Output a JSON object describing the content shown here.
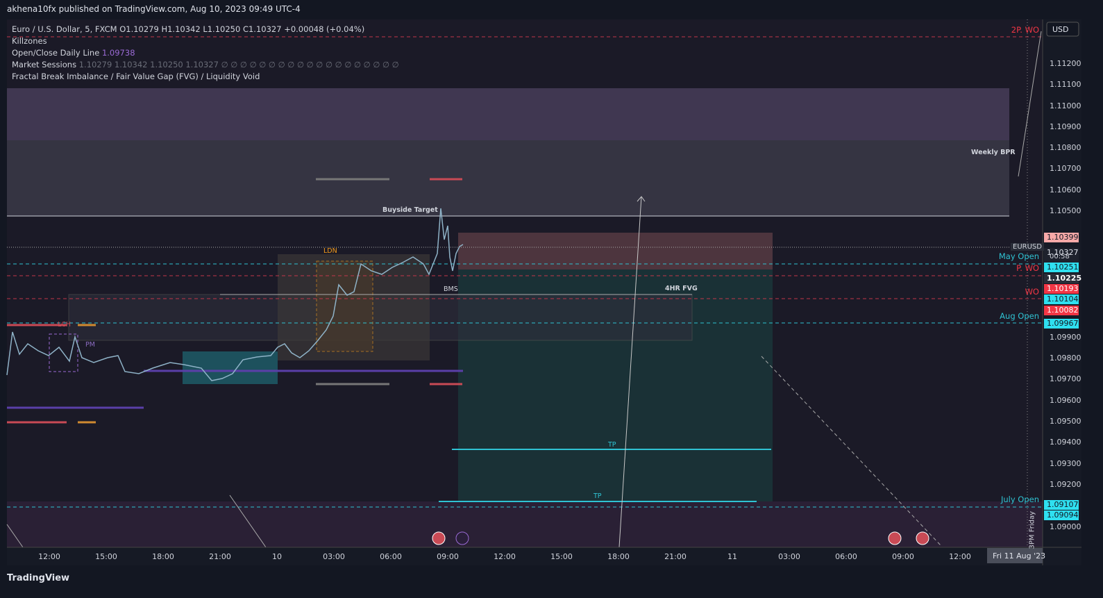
{
  "header": {
    "publisher": "akhena10fx published on TradingView.com, Aug 10, 2023 09:49 UTC-4"
  },
  "legend": {
    "symbol": "Euro / U.S. Dollar, 5, FXCM",
    "open": "O1.10279",
    "high": "H1.10342",
    "low": "L1.10250",
    "close": "C1.10327",
    "change": "+0.00048 (+0.04%)",
    "indicators": [
      {
        "name": "Killzones"
      },
      {
        "name": "Open/Close Daily Line",
        "value": "1.09738"
      },
      {
        "name": "Market Sessions",
        "value": "1.10279  1.10342  1.10250  1.10327  ∅ ∅ ∅ ∅ ∅ ∅ ∅ ∅ ∅ ∅ ∅ ∅ ∅ ∅ ∅ ∅ ∅ ∅ ∅"
      },
      {
        "name": "Fractal Break Imbalance / Fair Value Gap (FVG) / Liquidity Void"
      }
    ]
  },
  "price_axis": {
    "currency": "USD",
    "labels": [
      "1.11200",
      "1.11100",
      "1.11000",
      "1.10900",
      "1.10800",
      "1.10700",
      "1.10600",
      "1.10500",
      "1.09900",
      "1.09800",
      "1.09700",
      "1.09600",
      "1.09500",
      "1.09400",
      "1.09300",
      "1.09200",
      "1.09000"
    ]
  },
  "price_tags": [
    {
      "label": "1.10399",
      "color": "#f7a9a8"
    },
    {
      "label": "1.10327",
      "extra": "00:58",
      "color": "#e0e3eb"
    },
    {
      "label": "1.10251",
      "color": "#2fe0f0"
    },
    {
      "label": "1.10225",
      "color": "#2a2e39"
    },
    {
      "label": "1.10193",
      "color": "#f23645"
    },
    {
      "label": "1.10104",
      "color": "#2fe0f0"
    },
    {
      "label": "1.10082",
      "color": "#f23645"
    },
    {
      "label": "1.09967",
      "color": "#2fe0f0"
    },
    {
      "label": "1.09107",
      "color": "#2fe0f0"
    },
    {
      "label": "1.09094",
      "color": "#2fe0f0"
    }
  ],
  "levels": [
    {
      "label": "2P. WO",
      "color": "#f23645"
    },
    {
      "label": "May Open",
      "color": "#2fc3d3"
    },
    {
      "label": "P. WO",
      "color": "#f23645"
    },
    {
      "label": "WO",
      "color": "#f23645"
    },
    {
      "label": "Aug Open",
      "color": "#2fc3d3"
    },
    {
      "label": "July Open",
      "color": "#2fc3d3"
    }
  ],
  "symbol_tag": "EURUSD",
  "annotations": [
    "Weekly BPR",
    "Buyside Target",
    "LDN",
    "BMS",
    "4HR FVG",
    "TP",
    "TP",
    "LCH",
    "PM",
    "3PM Friday"
  ],
  "time_axis": {
    "labels": [
      "12:00",
      "15:00",
      "18:00",
      "21:00",
      "10",
      "03:00",
      "06:00",
      "09:00",
      "12:00",
      "15:00",
      "18:00",
      "21:00",
      "11",
      "03:00",
      "06:00",
      "09:00",
      "12:00"
    ],
    "current": "Fri 11 Aug '23"
  },
  "footer": {
    "brand": "TradingView"
  }
}
